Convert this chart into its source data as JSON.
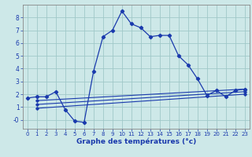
{
  "xlabel": "Graphe des températures (°c)",
  "bg_color": "#cde8e8",
  "grid_color": "#a0c8c8",
  "line_color": "#1a3aad",
  "xlim": [
    -0.5,
    23.5
  ],
  "ylim": [
    -0.7,
    9.0
  ],
  "yticks": [
    0,
    1,
    2,
    3,
    4,
    5,
    6,
    7,
    8
  ],
  "ytick_labels": [
    "-0",
    "1",
    "2",
    "3",
    "4",
    "5",
    "6",
    "7",
    "8"
  ],
  "xticks": [
    0,
    1,
    2,
    3,
    4,
    5,
    6,
    7,
    8,
    9,
    10,
    11,
    12,
    13,
    14,
    15,
    16,
    17,
    18,
    19,
    20,
    21,
    22,
    23
  ],
  "line1_x": [
    0,
    1,
    2,
    3,
    4,
    5,
    6,
    7,
    8,
    9,
    10,
    11,
    12,
    13,
    14,
    15,
    16,
    17,
    18,
    19,
    20,
    21,
    22,
    23
  ],
  "line1_y": [
    1.7,
    1.8,
    1.8,
    2.2,
    0.8,
    -0.1,
    -0.2,
    3.8,
    6.5,
    7.0,
    8.5,
    7.5,
    7.2,
    6.5,
    6.6,
    6.6,
    5.0,
    4.3,
    3.2,
    1.9,
    2.3,
    1.8,
    2.3,
    2.4
  ],
  "line2_x": [
    1,
    23
  ],
  "line2_y": [
    1.5,
    2.4
  ],
  "line3_x": [
    1,
    23
  ],
  "line3_y": [
    1.2,
    2.2
  ],
  "line4_x": [
    1,
    23
  ],
  "line4_y": [
    0.9,
    2.0
  ],
  "spine_color": "#888888",
  "xlabel_fontsize": 6.5,
  "xtick_fontsize": 5.0,
  "ytick_fontsize": 5.5
}
